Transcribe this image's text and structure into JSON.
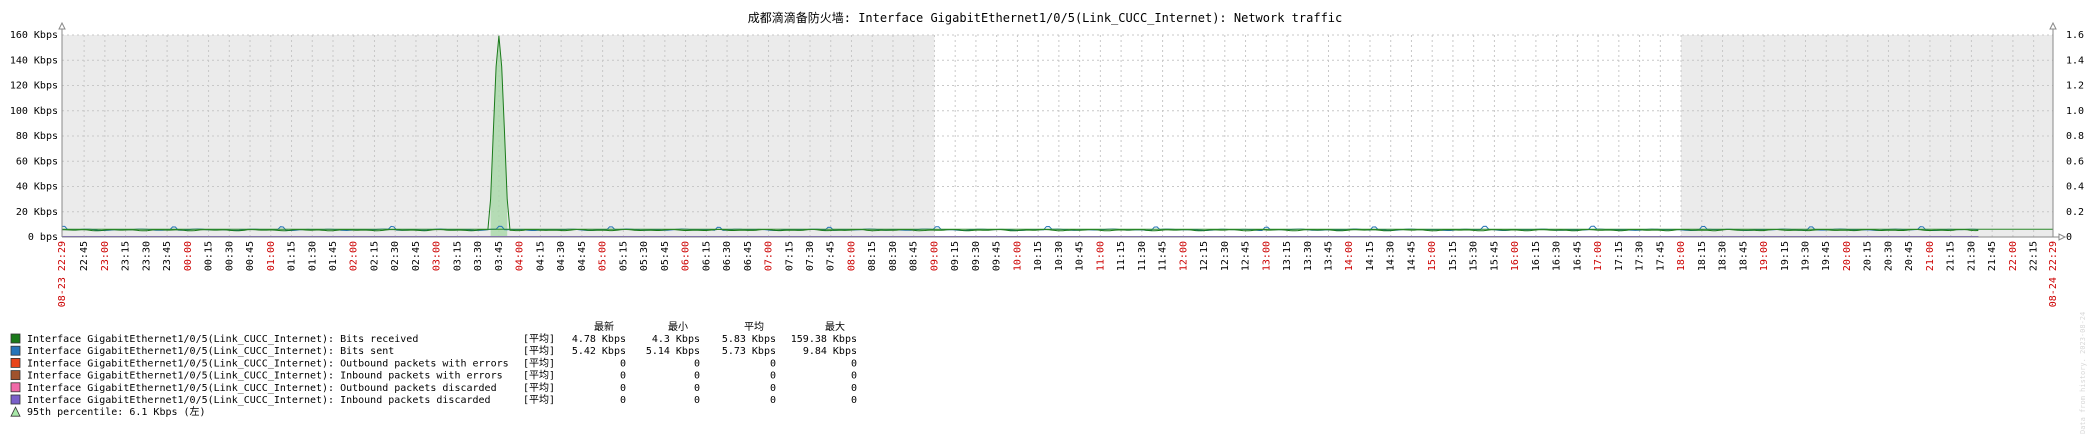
{
  "chart_data": {
    "type": "line",
    "title": "成都滴滴备防火墙: Interface GigabitEthernet1/0/5(Link_CUCC_Internet): Network traffic",
    "y_left": {
      "ticks": [
        "0 bps",
        "20 Kbps",
        "40 Kbps",
        "60 Kbps",
        "80 Kbps",
        "100 Kbps",
        "120 Kbps",
        "140 Kbps",
        "160 Kbps"
      ],
      "min": 0,
      "max": 160
    },
    "y_right": {
      "ticks": [
        "0",
        "0.2",
        "0.4",
        "0.6",
        "0.8",
        "1.0",
        "1.2",
        "1.4",
        "1.6"
      ],
      "min": 0,
      "max": 1.6
    },
    "x_range": [
      "2023-08-23 22:29",
      "2023-08-24 22:29"
    ],
    "x_start_label": "08-23 22:29",
    "x_end_label": "08-24 22:29",
    "data_end": "21:35",
    "x_ticks": [
      "22:45",
      "23:00",
      "23:15",
      "23:30",
      "23:45",
      "00:00",
      "00:15",
      "00:30",
      "00:45",
      "01:00",
      "01:15",
      "01:30",
      "01:45",
      "02:00",
      "02:15",
      "02:30",
      "02:45",
      "03:00",
      "03:15",
      "03:30",
      "03:45",
      "04:00",
      "04:15",
      "04:30",
      "04:45",
      "05:00",
      "05:15",
      "05:30",
      "05:45",
      "06:00",
      "06:15",
      "06:30",
      "06:45",
      "07:00",
      "07:15",
      "07:30",
      "07:45",
      "08:00",
      "08:15",
      "08:30",
      "08:45",
      "09:00",
      "09:15",
      "09:30",
      "09:45",
      "10:00",
      "10:15",
      "10:30",
      "10:45",
      "11:00",
      "11:15",
      "11:30",
      "11:45",
      "12:00",
      "12:15",
      "12:30",
      "12:45",
      "13:00",
      "13:15",
      "13:30",
      "13:45",
      "14:00",
      "14:15",
      "14:30",
      "14:45",
      "15:00",
      "15:15",
      "15:30",
      "15:45",
      "16:00",
      "16:15",
      "16:30",
      "16:45",
      "17:00",
      "17:15",
      "17:30",
      "17:45",
      "18:00",
      "18:15",
      "18:30",
      "18:45",
      "19:00",
      "19:15",
      "19:30",
      "19:45",
      "20:00",
      "20:15",
      "20:30",
      "20:45",
      "21:00",
      "21:15",
      "21:30",
      "21:45",
      "22:00",
      "22:15"
    ],
    "x_ticks_red": [
      "23:00",
      "00:00",
      "01:00",
      "02:00",
      "03:00",
      "04:00",
      "05:00",
      "06:00",
      "07:00",
      "08:00",
      "09:00",
      "10:00",
      "11:00",
      "12:00",
      "13:00",
      "14:00",
      "15:00",
      "16:00",
      "17:00",
      "18:00",
      "19:00",
      "20:00",
      "21:00",
      "22:00"
    ],
    "shaded_periods": [
      [
        "2023-08-23 22:29",
        "2023-08-24 09:00"
      ],
      [
        "2023-08-24 18:00",
        "2023-08-24 22:29"
      ]
    ],
    "spike": {
      "time": "03:45",
      "value_kbps": 159.38
    },
    "percentile_kbps": 6.1,
    "series": [
      {
        "name": "Interface GigabitEthernet1/0/5(Link_CUCC_Internet): Bits received",
        "color": "#1a7a1a",
        "axis": "left",
        "func": "[平均]",
        "last": "4.78 Kbps",
        "min": "4.3 Kbps",
        "avg": "5.83 Kbps",
        "max": "159.38 Kbps"
      },
      {
        "name": "Interface GigabitEthernet1/0/5(Link_CUCC_Internet): Bits sent",
        "color": "#2774b8",
        "axis": "left",
        "func": "[平均]",
        "last": "5.42 Kbps",
        "min": "5.14 Kbps",
        "avg": "5.73 Kbps",
        "max": "9.84 Kbps"
      },
      {
        "name": "Interface GigabitEthernet1/0/5(Link_CUCC_Internet): Outbound packets with errors",
        "color": "#e8441a",
        "axis": "right",
        "func": "[平均]",
        "last": "0",
        "min": "0",
        "avg": "0",
        "max": "0"
      },
      {
        "name": "Interface GigabitEthernet1/0/5(Link_CUCC_Internet): Inbound packets with errors",
        "color": "#a0522d",
        "axis": "right",
        "func": "[平均]",
        "last": "0",
        "min": "0",
        "avg": "0",
        "max": "0"
      },
      {
        "name": "Interface GigabitEthernet1/0/5(Link_CUCC_Internet): Outbound packets discarded",
        "color": "#f06aa8",
        "axis": "right",
        "func": "[平均]",
        "last": "0",
        "min": "0",
        "avg": "0",
        "max": "0"
      },
      {
        "name": "Interface GigabitEthernet1/0/5(Link_CUCC_Internet): Inbound packets discarded",
        "color": "#7a5fc9",
        "axis": "right",
        "func": "[平均]",
        "last": "0",
        "min": "0",
        "avg": "0",
        "max": "0"
      }
    ],
    "legend_headers": [
      "最新",
      "最小",
      "平均",
      "最大"
    ],
    "percentile_label": "95th percentile: 6.1 Kbps (左)",
    "percentile_color": "#2a8a2a",
    "watermark": "Data from history. 2023-08-24"
  }
}
